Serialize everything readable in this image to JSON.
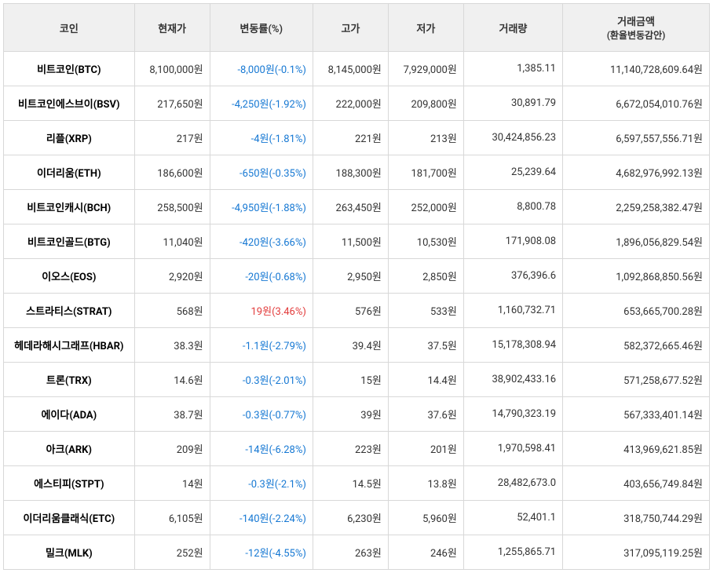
{
  "headers": {
    "coin": "코인",
    "price": "현재가",
    "change": "변동률(%)",
    "high": "고가",
    "low": "저가",
    "volume": "거래량",
    "amount_line1": "거래금액",
    "amount_line2": "(환율변동감안)"
  },
  "rows": [
    {
      "coin": "비트코인(BTC)",
      "price": "8,100,000원",
      "change": "-8,000원(-0.1%)",
      "dir": "down",
      "high": "8,145,000원",
      "low": "7,929,000원",
      "volume": "1,385.11",
      "amount": "11,140,728,609.64원"
    },
    {
      "coin": "비트코인에스브이(BSV)",
      "price": "217,650원",
      "change": "-4,250원(-1.92%)",
      "dir": "down",
      "high": "222,000원",
      "low": "209,800원",
      "volume": "30,891.79",
      "amount": "6,672,054,010.76원"
    },
    {
      "coin": "리플(XRP)",
      "price": "217원",
      "change": "-4원(-1.81%)",
      "dir": "down",
      "high": "221원",
      "low": "213원",
      "volume": "30,424,856.23",
      "amount": "6,597,557,556.71원"
    },
    {
      "coin": "이더리움(ETH)",
      "price": "186,600원",
      "change": "-650원(-0.35%)",
      "dir": "down",
      "high": "188,300원",
      "low": "181,700원",
      "volume": "25,239.64",
      "amount": "4,682,976,992.13원"
    },
    {
      "coin": "비트코인캐시(BCH)",
      "price": "258,500원",
      "change": "-4,950원(-1.88%)",
      "dir": "down",
      "high": "263,450원",
      "low": "252,000원",
      "volume": "8,800.78",
      "amount": "2,259,258,382.47원"
    },
    {
      "coin": "비트코인골드(BTG)",
      "price": "11,040원",
      "change": "-420원(-3.66%)",
      "dir": "down",
      "high": "11,500원",
      "low": "10,530원",
      "volume": "171,908.08",
      "amount": "1,896,056,829.54원"
    },
    {
      "coin": "이오스(EOS)",
      "price": "2,920원",
      "change": "-20원(-0.68%)",
      "dir": "down",
      "high": "2,950원",
      "low": "2,850원",
      "volume": "376,396.6",
      "amount": "1,092,868,850.56원"
    },
    {
      "coin": "스트라티스(STRAT)",
      "price": "568원",
      "change": "19원(3.46%)",
      "dir": "up",
      "high": "576원",
      "low": "533원",
      "volume": "1,160,732.71",
      "amount": "653,665,700.28원"
    },
    {
      "coin": "헤데라해시그래프(HBAR)",
      "price": "38.3원",
      "change": "-1.1원(-2.79%)",
      "dir": "down",
      "high": "39.4원",
      "low": "37.5원",
      "volume": "15,178,308.94",
      "amount": "582,372,665.46원"
    },
    {
      "coin": "트론(TRX)",
      "price": "14.6원",
      "change": "-0.3원(-2.01%)",
      "dir": "down",
      "high": "15원",
      "low": "14.4원",
      "volume": "38,902,433.16",
      "amount": "571,258,677.52원"
    },
    {
      "coin": "에이다(ADA)",
      "price": "38.7원",
      "change": "-0.3원(-0.77%)",
      "dir": "down",
      "high": "39원",
      "low": "37.6원",
      "volume": "14,790,323.19",
      "amount": "567,333,401.14원"
    },
    {
      "coin": "아크(ARK)",
      "price": "209원",
      "change": "-14원(-6.28%)",
      "dir": "down",
      "high": "223원",
      "low": "201원",
      "volume": "1,970,598.41",
      "amount": "413,969,621.85원"
    },
    {
      "coin": "에스티피(STPT)",
      "price": "14원",
      "change": "-0.3원(-2.1%)",
      "dir": "down",
      "high": "14.5원",
      "low": "13.8원",
      "volume": "28,482,673.0",
      "amount": "403,656,749.84원"
    },
    {
      "coin": "이더리움클래식(ETC)",
      "price": "6,105원",
      "change": "-140원(-2.24%)",
      "dir": "down",
      "high": "6,230원",
      "low": "5,960원",
      "volume": "52,401.1",
      "amount": "318,750,744.29원"
    },
    {
      "coin": "밀크(MLK)",
      "price": "252원",
      "change": "-12원(-4.55%)",
      "dir": "down",
      "high": "263원",
      "low": "246원",
      "volume": "1,255,865.71",
      "amount": "317,095,119.25원"
    }
  ]
}
